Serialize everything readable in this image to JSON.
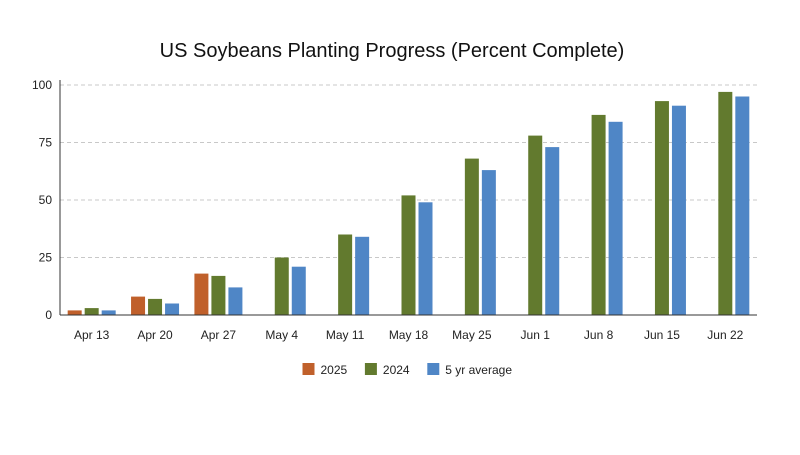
{
  "chart_data": {
    "type": "bar",
    "title": "US Soybeans Planting Progress (Percent Complete)",
    "xlabel": "",
    "ylabel": "",
    "categories": [
      "Apr 13",
      "Apr 20",
      "Apr 27",
      "May 4",
      "May 11",
      "May 18",
      "May 25",
      "Jun 1",
      "Jun 8",
      "Jun 15",
      "Jun 22"
    ],
    "yticks": [
      0,
      25,
      50,
      75,
      100
    ],
    "ylim": [
      0,
      100
    ],
    "grid": true,
    "legend_position": "bottom",
    "series": [
      {
        "name": "2025",
        "color": "#c0602b",
        "values": [
          2,
          8,
          18,
          null,
          null,
          null,
          null,
          null,
          null,
          null,
          null
        ]
      },
      {
        "name": "2024",
        "color": "#627a2e",
        "values": [
          3,
          7,
          17,
          25,
          35,
          52,
          68,
          78,
          87,
          93,
          97
        ]
      },
      {
        "name": "5 yr average",
        "color": "#4f86c6",
        "values": [
          2,
          5,
          12,
          21,
          34,
          49,
          63,
          73,
          84,
          91,
          95
        ]
      }
    ]
  }
}
